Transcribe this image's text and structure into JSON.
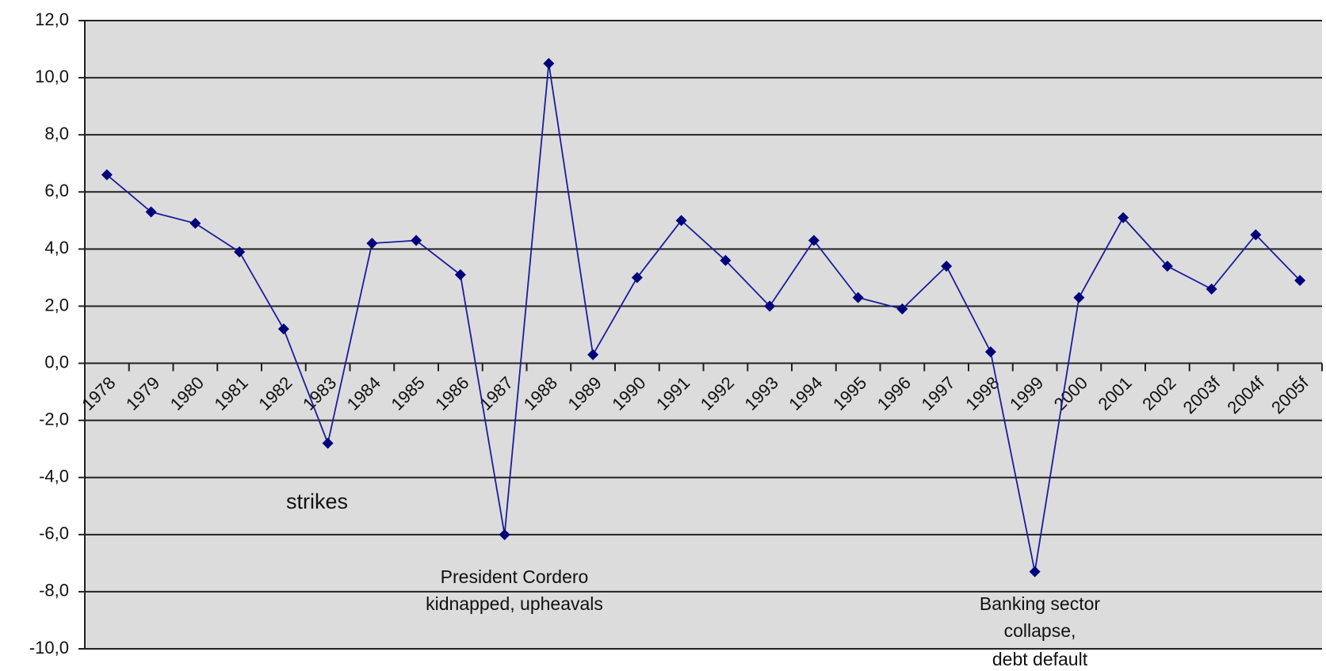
{
  "chart_data": {
    "type": "line",
    "categories": [
      "1978",
      "1979",
      "1980",
      "1981",
      "1982",
      "1983",
      "1984",
      "1985",
      "1986",
      "1987",
      "1988",
      "1989",
      "1990",
      "1991",
      "1992",
      "1993",
      "1994",
      "1995",
      "1996",
      "1997",
      "1998",
      "1999",
      "2000",
      "2001",
      "2002",
      "2003f",
      "2004f",
      "2005f"
    ],
    "series": [
      {
        "color": "#1c1c9c",
        "values": [
          6.6,
          5.3,
          4.9,
          3.9,
          1.2,
          -2.8,
          4.2,
          4.3,
          3.1,
          -6.0,
          10.5,
          0.3,
          3.0,
          5.0,
          3.6,
          2.0,
          4.3,
          2.3,
          1.9,
          3.4,
          0.4,
          -7.3,
          2.3,
          5.1,
          3.4,
          2.6,
          4.5,
          2.9
        ]
      }
    ],
    "ylim": [
      -10,
      12
    ],
    "yticks": [
      {
        "value": -10,
        "label": "-10,0"
      },
      {
        "value": -8,
        "label": "-8,0"
      },
      {
        "value": -6,
        "label": "-6,0"
      },
      {
        "value": -4,
        "label": "-4,0"
      },
      {
        "value": -2,
        "label": "-2,0"
      },
      {
        "value": 0,
        "label": "0,0"
      },
      {
        "value": 2,
        "label": "2,0"
      },
      {
        "value": 4,
        "label": "4,0"
      },
      {
        "value": 6,
        "label": "6,0"
      },
      {
        "value": 8,
        "label": "8,0"
      },
      {
        "value": 10,
        "label": "10,0"
      },
      {
        "value": 12,
        "label": "12,0"
      }
    ],
    "grid": true,
    "annotations": [
      {
        "lines": [
          "strikes"
        ]
      },
      {
        "lines": [
          "President Cordero",
          "kidnapped, upheavals"
        ]
      },
      {
        "lines": [
          "Banking sector",
          "collapse,",
          "debt default"
        ]
      }
    ]
  }
}
